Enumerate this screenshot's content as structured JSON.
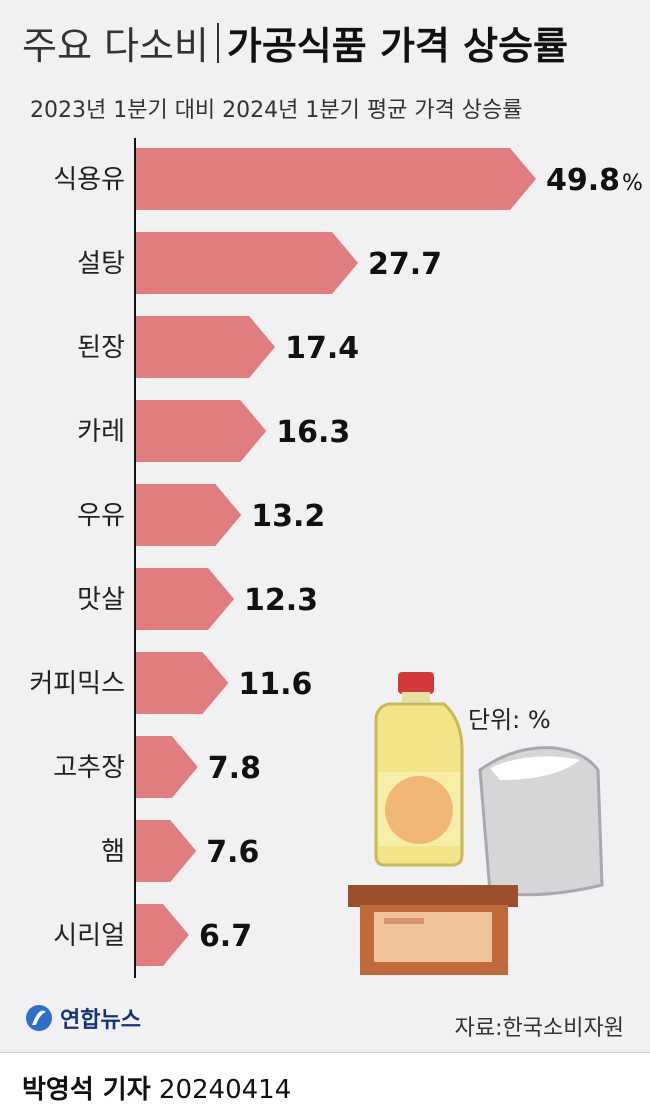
{
  "title": {
    "light": "주요 다소비",
    "bold": "가공식품 가격 상승률"
  },
  "subtitle": "2023년 1분기 대비 2024년 1분기 평균 가격 상승률",
  "unit_label": "단위: %",
  "source": "자료:한국소비자원",
  "agency": "연합뉴스",
  "credit": {
    "author": "박영석 기자",
    "date": "20240414"
  },
  "colors": {
    "bar": "#e07d7e",
    "axis": "#111111",
    "background": "#f1f1f3"
  },
  "chart_data": {
    "type": "bar",
    "orientation": "horizontal",
    "categories": [
      "식용유",
      "설탕",
      "된장",
      "카레",
      "우유",
      "맛살",
      "커피믹스",
      "고추장",
      "햄",
      "시리얼"
    ],
    "values": [
      49.8,
      27.7,
      17.4,
      16.3,
      13.2,
      12.3,
      11.6,
      7.8,
      7.6,
      6.7
    ],
    "value_labels": [
      "49.8",
      "27.7",
      "17.4",
      "16.3",
      "13.2",
      "12.3",
      "11.6",
      "7.8",
      "7.6",
      "6.7"
    ],
    "first_label_suffix": "%",
    "xlim": [
      0,
      52
    ],
    "grid": false,
    "legend": "none"
  }
}
